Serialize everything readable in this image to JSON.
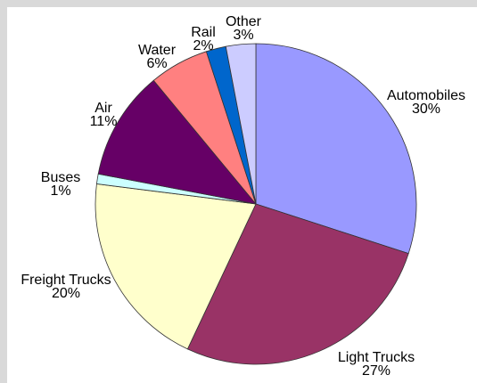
{
  "chart_data": {
    "type": "pie",
    "title": "",
    "slices": [
      {
        "label": "Automobiles",
        "pct_label": "30%",
        "value": 30,
        "color": "#9999ff"
      },
      {
        "label": "Light Trucks",
        "pct_label": "27%",
        "value": 27,
        "color": "#993366"
      },
      {
        "label": "Freight Trucks",
        "pct_label": "20%",
        "value": 20,
        "color": "#ffffcc"
      },
      {
        "label": "Buses",
        "pct_label": "1%",
        "value": 1,
        "color": "#ccffff"
      },
      {
        "label": "Air",
        "pct_label": "11%",
        "value": 11,
        "color": "#660066"
      },
      {
        "label": "Water",
        "pct_label": "6%",
        "value": 6,
        "color": "#ff8080"
      },
      {
        "label": "Rail",
        "pct_label": "2%",
        "value": 2,
        "color": "#0066cc"
      },
      {
        "label": "Other",
        "pct_label": "3%",
        "value": 3,
        "color": "#ccccff"
      }
    ],
    "start": "12 o'clock",
    "direction": "clockwise",
    "legend": "none",
    "labels": "outside slices"
  }
}
